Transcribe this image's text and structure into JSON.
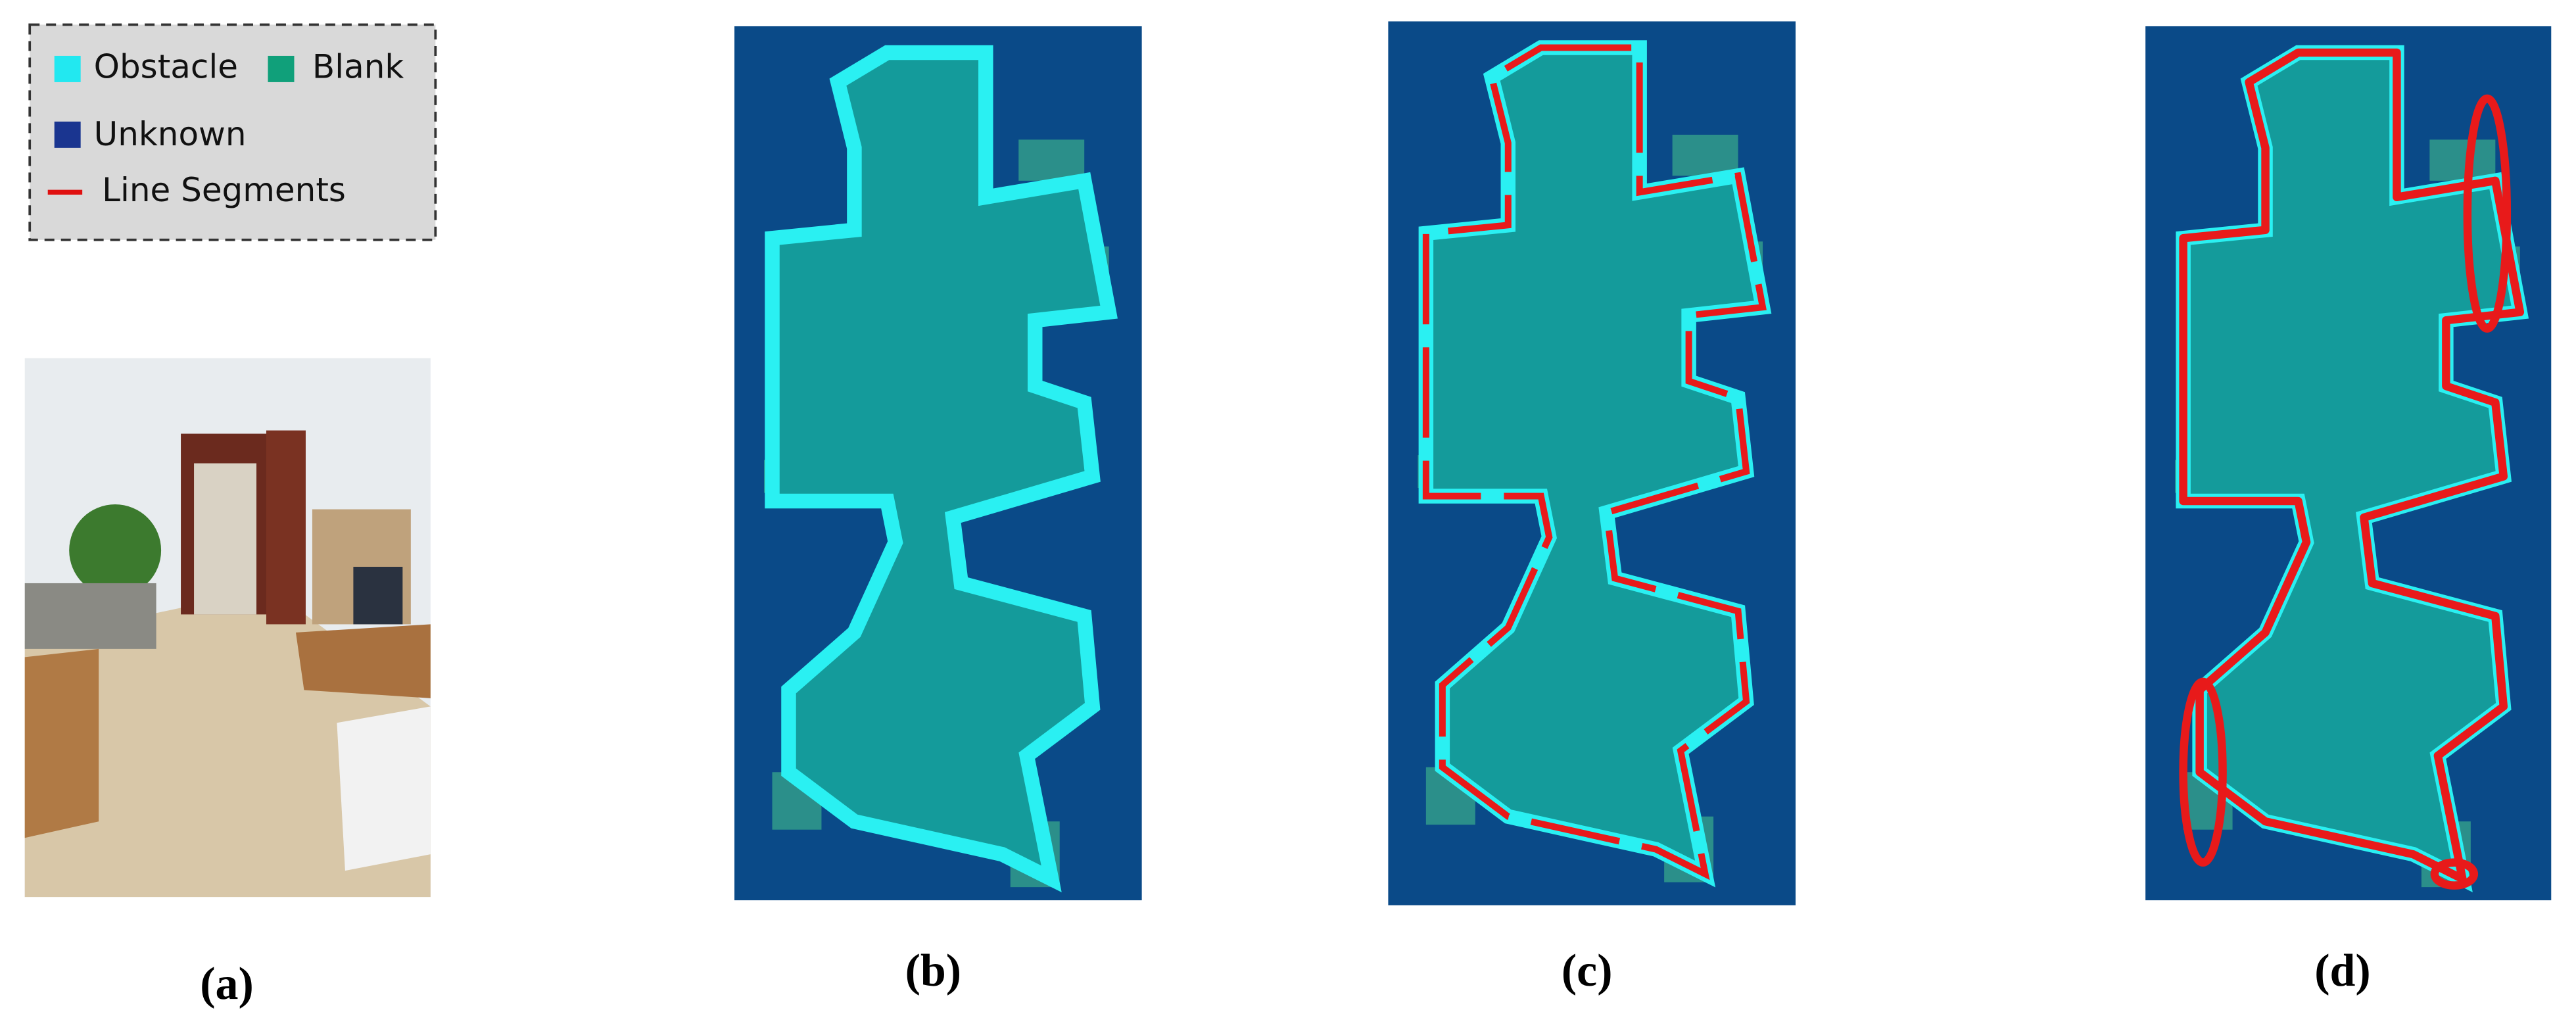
{
  "legend": {
    "items": [
      {
        "label": "Obstacle"
      },
      {
        "label": "Blank"
      },
      {
        "label": "Unknown"
      },
      {
        "label": "Line Segments"
      }
    ]
  },
  "panels": [
    {
      "label": "(a)"
    },
    {
      "label": "(b)"
    },
    {
      "label": "(c)"
    },
    {
      "label": "(d)"
    }
  ]
}
